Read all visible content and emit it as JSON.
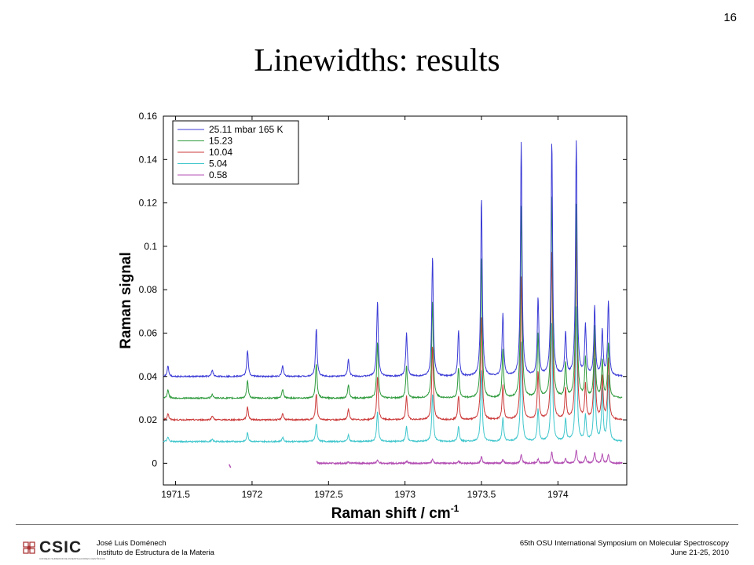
{
  "slide": {
    "number": "16",
    "title": "Linewidths:  results"
  },
  "footer": {
    "logo_text": "CSIC",
    "logo_tagline": "CONSEJO SUPERIOR DE INVESTIGACIONES CIENTÍFICAS",
    "author": "José Luis Doménech",
    "institution": "Instituto de Estructura de la Materia",
    "event": "65th OSU International Symposium on Molecular Spectroscopy",
    "dates": "June 21-25, 2010"
  },
  "chart_data": {
    "type": "line",
    "title": "",
    "xlabel": "Raman shift / cm",
    "xlabel_sup": "-1",
    "ylabel": "Raman signal",
    "xlim": [
      1971.42,
      1974.45
    ],
    "ylim": [
      -0.01,
      0.16
    ],
    "xticks": [
      1971.5,
      1972,
      1972.5,
      1973,
      1973.5,
      1974
    ],
    "xtick_labels": [
      "1971.5",
      "1972",
      "1972.5",
      "1973",
      "1973.5",
      "1974"
    ],
    "yticks": [
      0,
      0.02,
      0.04,
      0.06,
      0.08,
      0.1,
      0.12,
      0.14,
      0.16
    ],
    "ytick_labels": [
      "0",
      "0.02",
      "0.04",
      "0.06",
      "0.08",
      "0.1",
      "0.12",
      "0.14",
      "0.16"
    ],
    "grid": false,
    "legend_position": "top-left",
    "series": [
      {
        "name": "25.11 mbar 165 K",
        "color": "#3b3bd6",
        "baseline": 0.04,
        "x_start": 1971.42,
        "peak_heights": [
          0.005,
          0.003,
          0.012,
          0.005,
          0.022,
          0.008,
          0.035,
          0.02,
          0.055,
          0.021,
          0.082,
          0.029,
          0.108,
          0.036,
          0.108,
          0.02,
          0.108,
          0.023,
          0.032,
          0.021,
          0.034
        ]
      },
      {
        "name": "15.23",
        "color": "#2e9a3c",
        "baseline": 0.03,
        "x_start": 1971.42,
        "peak_heights": [
          0.004,
          0.002,
          0.008,
          0.004,
          0.016,
          0.006,
          0.026,
          0.015,
          0.045,
          0.014,
          0.065,
          0.022,
          0.088,
          0.03,
          0.094,
          0.016,
          0.089,
          0.018,
          0.033,
          0.017,
          0.025
        ]
      },
      {
        "name": "10.04",
        "color": "#cc3a3a",
        "baseline": 0.02,
        "x_start": 1971.42,
        "peak_heights": [
          0.003,
          0.002,
          0.006,
          0.003,
          0.012,
          0.005,
          0.02,
          0.011,
          0.034,
          0.011,
          0.048,
          0.016,
          0.066,
          0.022,
          0.078,
          0.014,
          0.085,
          0.016,
          0.04,
          0.02,
          0.028
        ]
      },
      {
        "name": "5.04",
        "color": "#3fc6cc",
        "baseline": 0.01,
        "x_start": 1971.42,
        "peak_heights": [
          0.002,
          0.001,
          0.004,
          0.002,
          0.008,
          0.003,
          0.014,
          0.007,
          0.022,
          0.007,
          0.033,
          0.011,
          0.046,
          0.015,
          0.055,
          0.01,
          0.062,
          0.012,
          0.038,
          0.024,
          0.03
        ]
      },
      {
        "name": "0.58",
        "color": "#b34fb3",
        "baseline": 0.0,
        "x_start": 1972.42,
        "peak_heights": [
          0.0005,
          0.0005,
          0.0008,
          0.0005,
          0.001,
          0.0007,
          0.0015,
          0.001,
          0.002,
          0.001,
          0.003,
          0.0015,
          0.004,
          0.002,
          0.005,
          0.002,
          0.006,
          0.003,
          0.005,
          0.004,
          0.004
        ]
      }
    ],
    "peak_positions": [
      1971.45,
      1971.74,
      1971.97,
      1972.2,
      1972.42,
      1972.63,
      1972.82,
      1973.01,
      1973.18,
      1973.35,
      1973.5,
      1973.64,
      1973.76,
      1973.87,
      1973.96,
      1974.05,
      1974.12,
      1974.18,
      1974.24,
      1974.29,
      1974.33
    ],
    "stray_segment": {
      "series": "0.58",
      "x": [
        1971.85,
        1971.86
      ],
      "y": [
        -0.0005,
        -0.002
      ]
    }
  }
}
